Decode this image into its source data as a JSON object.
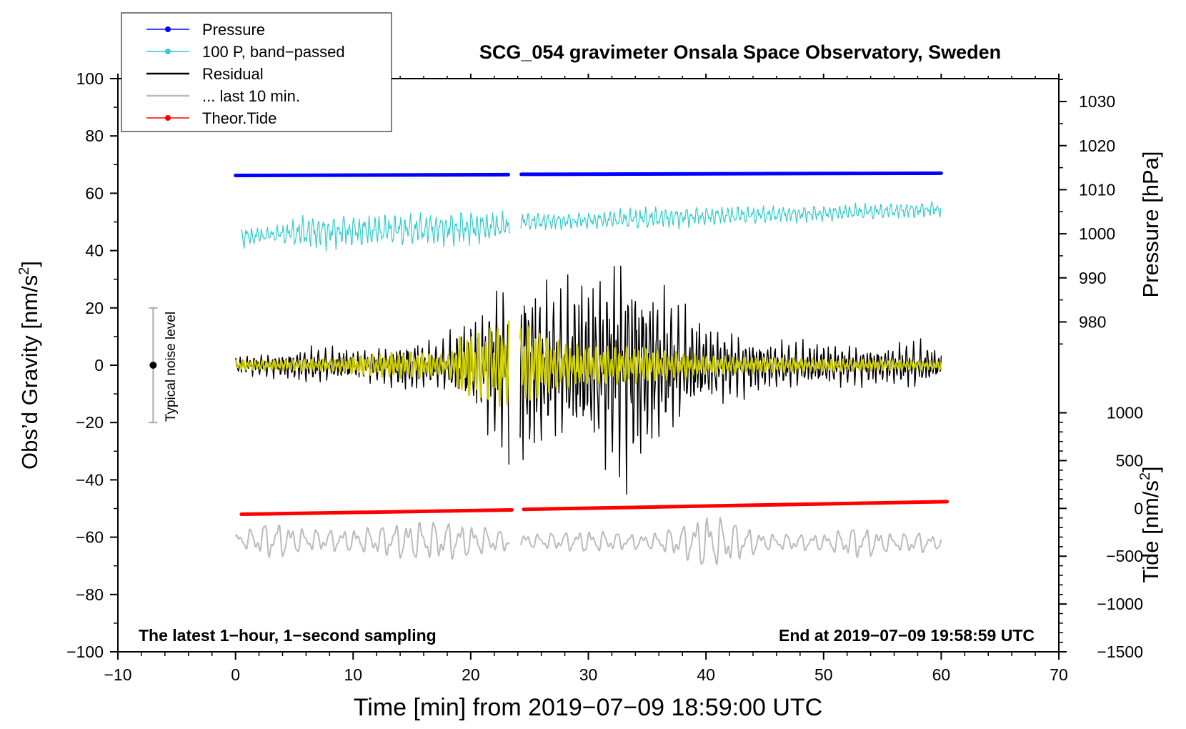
{
  "chart_data": {
    "type": "line",
    "title": "SCG_054 gravimeter Onsala Space Observatory, Sweden",
    "xlabel": "Time [min] from 2019−07−09 18:59:00 UTC",
    "ylabel": "Obs’d Gravity [nm/s",
    "ylabel_sup": "2",
    "ylabel_close": "]",
    "right_upper_label": "Pressure [hPa]",
    "right_lower_label": "Tide [nm/s",
    "right_lower_sup": "2",
    "right_lower_close": "]",
    "xlim": [
      -10,
      70
    ],
    "ylim": [
      -100,
      100
    ],
    "x_ticks": [
      -10,
      0,
      10,
      20,
      30,
      40,
      50,
      60,
      70
    ],
    "x_tick_labels": [
      "−10",
      "0",
      "10",
      "20",
      "30",
      "40",
      "50",
      "60",
      "70"
    ],
    "y_ticks": [
      -100,
      -80,
      -60,
      -40,
      -20,
      0,
      20,
      40,
      60,
      80,
      100
    ],
    "y_tick_labels": [
      "−100",
      "−80",
      "−60",
      "−40",
      "−20",
      "0",
      "20",
      "40",
      "60",
      "80",
      "100"
    ],
    "pressure_axis": {
      "unit": "hPa",
      "ticks": [
        1030,
        1020,
        1010,
        1000,
        990,
        980
      ],
      "tick_labels": [
        "1030",
        "1020",
        "1010",
        "1000",
        "990",
        "980"
      ],
      "map": {
        "value_a": 1030,
        "gravity_a": 92,
        "value_b": 980,
        "gravity_b": 15.1
      }
    },
    "tide_axis": {
      "unit": "nm/s2",
      "ticks": [
        1000,
        500,
        0,
        -500,
        -1000,
        -1500
      ],
      "tick_labels": [
        "1000",
        "500",
        "0",
        "−500",
        "−1000",
        "−1500"
      ],
      "map": {
        "value_a": 1000,
        "gravity_a": -16.6,
        "value_b": -1500,
        "gravity_b": -100
      }
    },
    "legend": {
      "placement": "top-left",
      "entries": [
        {
          "label": "Pressure",
          "color": "#0000ff",
          "marker": true,
          "width": 1
        },
        {
          "label": "100 P, band−passed",
          "color": "#33cccc",
          "marker": true,
          "width": 1
        },
        {
          "label": "Residual",
          "color": "#000000",
          "marker": false,
          "width": 2
        },
        {
          "label": "... last 10 min.",
          "color": "#bbbbbb",
          "marker": false,
          "width": 2
        },
        {
          "label": "Theor.Tide",
          "color": "#ff0000",
          "marker": true,
          "width": 1
        }
      ]
    },
    "annotations": {
      "bottom_left": "The latest 1−hour, 1−second sampling",
      "bottom_right": "End at 2019−07−09 19:58:59 UTC",
      "noise_label": "Typical noise level"
    },
    "noise_bar": {
      "x": -7,
      "center": 0,
      "low": -20,
      "high": 20
    },
    "series": [
      {
        "name": "Pressure",
        "color": "#0000ff",
        "segments": [
          {
            "x": [
              0,
              23.2
            ],
            "y": [
              66.2,
              66.5
            ]
          },
          {
            "x": [
              24.3,
              60
            ],
            "y": [
              66.6,
              67.0
            ]
          }
        ]
      },
      {
        "name": "100 P, band−passed",
        "color": "#33cccc",
        "baseline": [
          [
            0,
            44.5
          ],
          [
            6,
            46.5
          ],
          [
            12,
            47
          ],
          [
            18,
            47.8
          ],
          [
            23.2,
            48.5
          ],
          [
            24.3,
            50
          ],
          [
            30,
            50.5
          ],
          [
            40,
            52
          ],
          [
            50,
            53
          ],
          [
            60,
            54.5
          ]
        ],
        "envelope": [
          [
            0,
            4
          ],
          [
            3,
            2
          ],
          [
            6,
            5.5
          ],
          [
            10,
            5
          ],
          [
            15,
            5
          ],
          [
            20,
            5.5
          ],
          [
            23.2,
            4
          ],
          [
            24.3,
            3
          ],
          [
            30,
            2.5
          ],
          [
            35,
            3.5
          ],
          [
            40,
            3
          ],
          [
            50,
            2.5
          ],
          [
            55,
            2.5
          ],
          [
            60,
            2.5
          ]
        ]
      },
      {
        "name": "Residual",
        "color": "#000000",
        "envelope": [
          [
            0,
            3
          ],
          [
            4,
            4
          ],
          [
            6,
            6
          ],
          [
            10,
            5
          ],
          [
            13,
            6
          ],
          [
            15,
            9
          ],
          [
            17,
            7
          ],
          [
            19,
            12
          ],
          [
            21,
            18
          ],
          [
            22,
            25
          ],
          [
            23.2,
            28
          ],
          [
            24.3,
            33
          ],
          [
            27,
            24
          ],
          [
            30,
            28
          ],
          [
            32,
            33
          ],
          [
            33,
            38
          ],
          [
            34.5,
            30
          ],
          [
            36,
            26
          ],
          [
            38,
            18
          ],
          [
            40,
            13
          ],
          [
            45,
            8
          ],
          [
            50,
            7
          ],
          [
            55,
            6
          ],
          [
            58,
            8
          ],
          [
            60,
            4
          ]
        ]
      },
      {
        "name": "Residual (yellow overlay)",
        "color": "#cccc00",
        "envelope": [
          [
            0,
            1.5
          ],
          [
            8,
            2
          ],
          [
            13,
            4
          ],
          [
            16,
            4
          ],
          [
            18,
            3
          ],
          [
            19,
            9
          ],
          [
            21,
            11
          ],
          [
            23.2,
            14
          ],
          [
            24.3,
            14
          ],
          [
            27,
            8
          ],
          [
            30,
            6
          ],
          [
            33,
            6
          ],
          [
            36,
            5
          ],
          [
            40,
            3
          ],
          [
            50,
            2
          ],
          [
            60,
            1.5
          ]
        ]
      },
      {
        "name": "Theor.Tide",
        "color": "#ff0000",
        "segments": [
          {
            "x": [
              0.5,
              23.5
            ],
            "y": [
              -52,
              -50.5
            ]
          },
          {
            "x": [
              24.5,
              60.5
            ],
            "y": [
              -50.3,
              -47.6
            ]
          }
        ]
      },
      {
        "name": "... last 10 min.",
        "color": "#bbbbbb",
        "baseline": [
          [
            0,
            -61
          ],
          [
            60,
            -62
          ]
        ],
        "envelope": [
          [
            0,
            2
          ],
          [
            3,
            7
          ],
          [
            6,
            4
          ],
          [
            10,
            4
          ],
          [
            15,
            7
          ],
          [
            18,
            7
          ],
          [
            21,
            5
          ],
          [
            25,
            2.5
          ],
          [
            30,
            4
          ],
          [
            35,
            2.5
          ],
          [
            38,
            6
          ],
          [
            40,
            10
          ],
          [
            42,
            8
          ],
          [
            45,
            3
          ],
          [
            50,
            3
          ],
          [
            53,
            6
          ],
          [
            56,
            3
          ],
          [
            58,
            4
          ],
          [
            60,
            2
          ]
        ]
      }
    ]
  }
}
